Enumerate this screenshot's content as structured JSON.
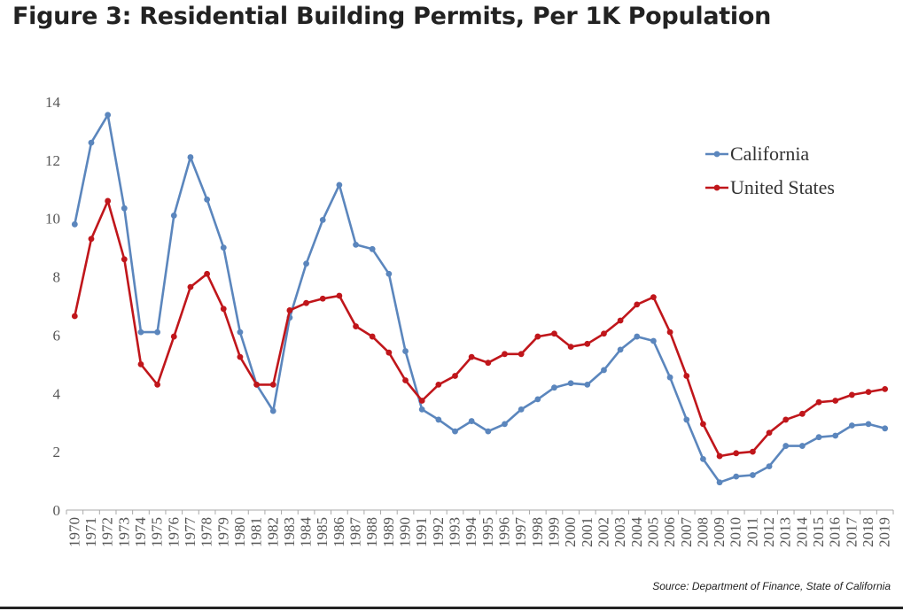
{
  "figure": {
    "title": "Figure 3: Residential Building Permits, Per 1K Population",
    "source": "Source: Department of Finance, State of California"
  },
  "colors": {
    "california": "#5b86bd",
    "united_states": "#c0161b",
    "axis": "#aaaaaa",
    "text": "#555555"
  },
  "chart_data": {
    "type": "line",
    "title": "",
    "xlabel": "",
    "ylabel": "",
    "ylim": [
      0,
      14
    ],
    "yticks": [
      0,
      2,
      4,
      6,
      8,
      10,
      12,
      14
    ],
    "grid": false,
    "legend_position": "top-right",
    "categories": [
      "1970",
      "1971",
      "1972",
      "1973",
      "1974",
      "1975",
      "1976",
      "1977",
      "1978",
      "1979",
      "1980",
      "1981",
      "1982",
      "1983",
      "1984",
      "1985",
      "1986",
      "1987",
      "1988",
      "1989",
      "1990",
      "1991",
      "1992",
      "1993",
      "1994",
      "1995",
      "1996",
      "1997",
      "1998",
      "1999",
      "2000",
      "2001",
      "2002",
      "2003",
      "2004",
      "2005",
      "2006",
      "2007",
      "2008",
      "2009",
      "2010",
      "2011",
      "2012",
      "2013",
      "2014",
      "2015",
      "2016",
      "2017",
      "2018",
      "2019"
    ],
    "series": [
      {
        "name": "California",
        "color": "#5b86bd",
        "values": [
          9.8,
          12.6,
          13.55,
          10.35,
          6.1,
          6.1,
          10.1,
          12.1,
          10.65,
          9.0,
          6.1,
          4.3,
          3.4,
          6.6,
          8.45,
          9.95,
          11.15,
          9.1,
          8.95,
          8.1,
          5.45,
          3.45,
          3.1,
          2.7,
          3.05,
          2.7,
          2.95,
          3.45,
          3.8,
          4.2,
          4.35,
          4.3,
          4.8,
          5.5,
          5.95,
          5.8,
          4.55,
          3.1,
          1.75,
          0.95,
          1.15,
          1.2,
          1.5,
          2.2,
          2.2,
          2.5,
          2.55,
          2.9,
          2.95,
          2.8
        ]
      },
      {
        "name": "United States",
        "color": "#c0161b",
        "values": [
          6.65,
          9.3,
          10.6,
          8.6,
          5.0,
          4.3,
          5.95,
          7.65,
          8.1,
          6.9,
          5.25,
          4.3,
          4.3,
          6.85,
          7.1,
          7.25,
          7.35,
          6.3,
          5.95,
          5.4,
          4.45,
          3.75,
          4.3,
          4.6,
          5.25,
          5.05,
          5.35,
          5.35,
          5.95,
          6.05,
          5.6,
          5.7,
          6.05,
          6.5,
          7.05,
          7.3,
          6.1,
          4.6,
          2.95,
          1.85,
          1.95,
          2.0,
          2.65,
          3.1,
          3.3,
          3.7,
          3.75,
          3.95,
          4.05,
          4.15
        ]
      }
    ]
  }
}
